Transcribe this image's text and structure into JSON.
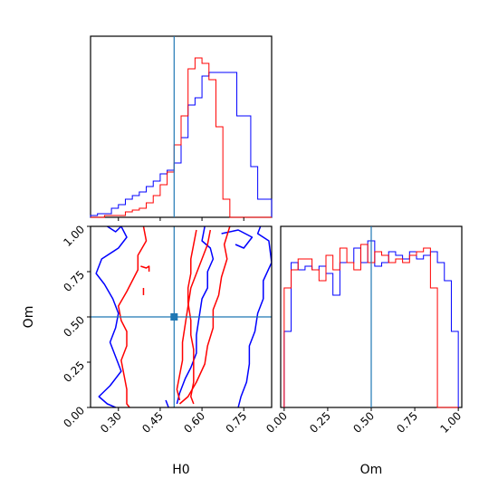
{
  "chart_data": [
    {
      "panel": "top-left",
      "type": "histogram",
      "param": "H0",
      "xlim": [
        0.2,
        0.85
      ],
      "truth_line": 0.5,
      "bin_edges": [
        0.2,
        0.225,
        0.25,
        0.275,
        0.3,
        0.325,
        0.35,
        0.375,
        0.4,
        0.425,
        0.45,
        0.475,
        0.5,
        0.525,
        0.55,
        0.575,
        0.6,
        0.625,
        0.65,
        0.675,
        0.7,
        0.725,
        0.75,
        0.775,
        0.8,
        0.825,
        0.85
      ],
      "series": [
        {
          "color": "#0000ff",
          "values": [
            0.01,
            0.02,
            0.02,
            0.05,
            0.07,
            0.1,
            0.12,
            0.14,
            0.17,
            0.2,
            0.24,
            0.26,
            0.3,
            0.44,
            0.62,
            0.66,
            0.78,
            0.8,
            0.8,
            0.8,
            0.8,
            0.56,
            0.56,
            0.28,
            0.1,
            0.1
          ]
        },
        {
          "color": "#ff0000",
          "values": [
            0,
            0,
            0.01,
            0.01,
            0.01,
            0.03,
            0.04,
            0.05,
            0.08,
            0.12,
            0.18,
            0.25,
            0.4,
            0.56,
            0.82,
            0.88,
            0.85,
            0.76,
            0.5,
            0.1,
            0,
            0,
            0,
            0,
            0,
            0
          ]
        }
      ],
      "ylim": [
        0,
        1
      ],
      "xticks": [
        0.3,
        0.45,
        0.6,
        0.75
      ]
    },
    {
      "panel": "bottom-left",
      "type": "contour",
      "x_param": "H0",
      "y_param": "Om",
      "xlim": [
        0.2,
        0.85
      ],
      "ylim": [
        0,
        1
      ],
      "truth_point": [
        0.5,
        0.5
      ],
      "series": [
        {
          "color": "#0000ff",
          "contours": [
            [
              [
                0.26,
                1.0
              ],
              [
                0.29,
                0.97
              ],
              [
                0.31,
                1.0
              ],
              [
                0.33,
                0.94
              ],
              [
                0.3,
                0.88
              ],
              [
                0.24,
                0.82
              ],
              [
                0.22,
                0.74
              ],
              [
                0.25,
                0.68
              ],
              [
                0.28,
                0.6
              ],
              [
                0.3,
                0.52
              ],
              [
                0.29,
                0.44
              ],
              [
                0.27,
                0.36
              ],
              [
                0.29,
                0.28
              ],
              [
                0.31,
                0.2
              ],
              [
                0.27,
                0.12
              ],
              [
                0.23,
                0.06
              ],
              [
                0.26,
                0.02
              ],
              [
                0.29,
                0.0
              ]
            ],
            [
              [
                0.81,
                1.0
              ],
              [
                0.8,
                0.96
              ],
              [
                0.84,
                0.92
              ],
              [
                0.85,
                0.8
              ],
              [
                0.82,
                0.7
              ],
              [
                0.82,
                0.6
              ],
              [
                0.8,
                0.52
              ],
              [
                0.79,
                0.42
              ],
              [
                0.77,
                0.34
              ],
              [
                0.77,
                0.24
              ],
              [
                0.76,
                0.14
              ],
              [
                0.74,
                0.06
              ],
              [
                0.73,
                0.0
              ]
            ],
            [
              [
                0.61,
                1.0
              ],
              [
                0.6,
                0.92
              ],
              [
                0.63,
                0.88
              ],
              [
                0.64,
                0.82
              ],
              [
                0.62,
                0.75
              ],
              [
                0.62,
                0.66
              ],
              [
                0.6,
                0.6
              ],
              [
                0.59,
                0.5
              ],
              [
                0.58,
                0.4
              ],
              [
                0.58,
                0.3
              ],
              [
                0.56,
                0.22
              ],
              [
                0.54,
                0.16
              ],
              [
                0.52,
                0.08
              ],
              [
                0.51,
                0.02
              ]
            ],
            [
              [
                0.67,
                0.96
              ],
              [
                0.73,
                0.98
              ],
              [
                0.78,
                0.94
              ],
              [
                0.75,
                0.88
              ],
              [
                0.72,
                0.9
              ]
            ],
            [
              [
                0.47,
                0.04
              ],
              [
                0.48,
                0.0
              ]
            ]
          ]
        },
        {
          "color": "#ff0000",
          "contours": [
            [
              [
                0.39,
                1.0
              ],
              [
                0.4,
                0.92
              ],
              [
                0.37,
                0.84
              ],
              [
                0.37,
                0.76
              ],
              [
                0.35,
                0.7
              ],
              [
                0.33,
                0.64
              ],
              [
                0.3,
                0.56
              ],
              [
                0.31,
                0.48
              ],
              [
                0.33,
                0.42
              ],
              [
                0.33,
                0.34
              ],
              [
                0.31,
                0.26
              ],
              [
                0.32,
                0.18
              ],
              [
                0.33,
                0.1
              ],
              [
                0.33,
                0.02
              ],
              [
                0.34,
                0.0
              ]
            ],
            [
              [
                0.7,
                1.0
              ],
              [
                0.68,
                0.9
              ],
              [
                0.69,
                0.82
              ],
              [
                0.67,
                0.72
              ],
              [
                0.66,
                0.62
              ],
              [
                0.64,
                0.54
              ],
              [
                0.64,
                0.44
              ],
              [
                0.62,
                0.34
              ],
              [
                0.61,
                0.24
              ],
              [
                0.58,
                0.14
              ],
              [
                0.55,
                0.06
              ],
              [
                0.52,
                0.02
              ]
            ],
            [
              [
                0.63,
                0.98
              ],
              [
                0.62,
                0.9
              ],
              [
                0.6,
                0.82
              ],
              [
                0.58,
                0.74
              ],
              [
                0.56,
                0.66
              ],
              [
                0.55,
                0.56
              ],
              [
                0.54,
                0.46
              ],
              [
                0.53,
                0.36
              ],
              [
                0.53,
                0.26
              ],
              [
                0.52,
                0.18
              ],
              [
                0.51,
                0.1
              ],
              [
                0.52,
                0.04
              ]
            ],
            [
              [
                0.58,
                0.98
              ],
              [
                0.57,
                0.9
              ],
              [
                0.56,
                0.82
              ],
              [
                0.56,
                0.74
              ],
              [
                0.55,
                0.66
              ],
              [
                0.55,
                0.58
              ],
              [
                0.56,
                0.48
              ],
              [
                0.56,
                0.4
              ],
              [
                0.57,
                0.32
              ],
              [
                0.57,
                0.22
              ],
              [
                0.57,
                0.14
              ],
              [
                0.56,
                0.06
              ],
              [
                0.57,
                0.02
              ]
            ],
            [
              [
                0.39,
                0.66
              ],
              [
                0.39,
                0.62
              ]
            ],
            [
              [
                0.38,
                0.78
              ],
              [
                0.4,
                0.77
              ],
              [
                0.41,
                0.78
              ],
              [
                0.41,
                0.75
              ]
            ]
          ]
        }
      ],
      "xticks": [
        0.3,
        0.45,
        0.6,
        0.75
      ],
      "yticks": [
        0.0,
        0.25,
        0.5,
        0.75,
        1.0
      ]
    },
    {
      "panel": "bottom-right",
      "type": "histogram",
      "param": "Om",
      "xlim": [
        0.0,
        1.0
      ],
      "truth_line": 0.5,
      "bin_edges": [
        0.0,
        0.04,
        0.08,
        0.12,
        0.16,
        0.2,
        0.24,
        0.28,
        0.32,
        0.36,
        0.4,
        0.44,
        0.48,
        0.52,
        0.56,
        0.6,
        0.64,
        0.68,
        0.72,
        0.76,
        0.8,
        0.84,
        0.88,
        0.92,
        0.96,
        1.0
      ],
      "series": [
        {
          "color": "#0000ff",
          "values": [
            0.42,
            0.8,
            0.76,
            0.78,
            0.76,
            0.78,
            0.74,
            0.62,
            0.8,
            0.8,
            0.88,
            0.8,
            0.92,
            0.78,
            0.8,
            0.86,
            0.84,
            0.82,
            0.86,
            0.82,
            0.84,
            0.86,
            0.8,
            0.7,
            0.42
          ]
        },
        {
          "color": "#ff0000",
          "values": [
            0.66,
            0.76,
            0.82,
            0.82,
            0.76,
            0.7,
            0.84,
            0.76,
            0.88,
            0.8,
            0.76,
            0.9,
            0.8,
            0.86,
            0.84,
            0.8,
            0.82,
            0.8,
            0.84,
            0.86,
            0.88,
            0.66,
            0.0,
            0.0,
            0.0
          ]
        }
      ],
      "ylim": [
        0,
        1
      ],
      "xticks": [
        0.0,
        0.25,
        0.5,
        0.75,
        1.0
      ]
    }
  ],
  "labels": {
    "H0": "H0",
    "Om": "Om",
    "ticks_H0": [
      "0.30",
      "0.45",
      "0.60",
      "0.75"
    ],
    "ticks_Om": [
      "0.00",
      "0.25",
      "0.50",
      "0.75",
      "1.00"
    ]
  },
  "colors": {
    "series_a": "#0000ff",
    "series_b": "#ff0000",
    "truth": "#1f77b4"
  }
}
